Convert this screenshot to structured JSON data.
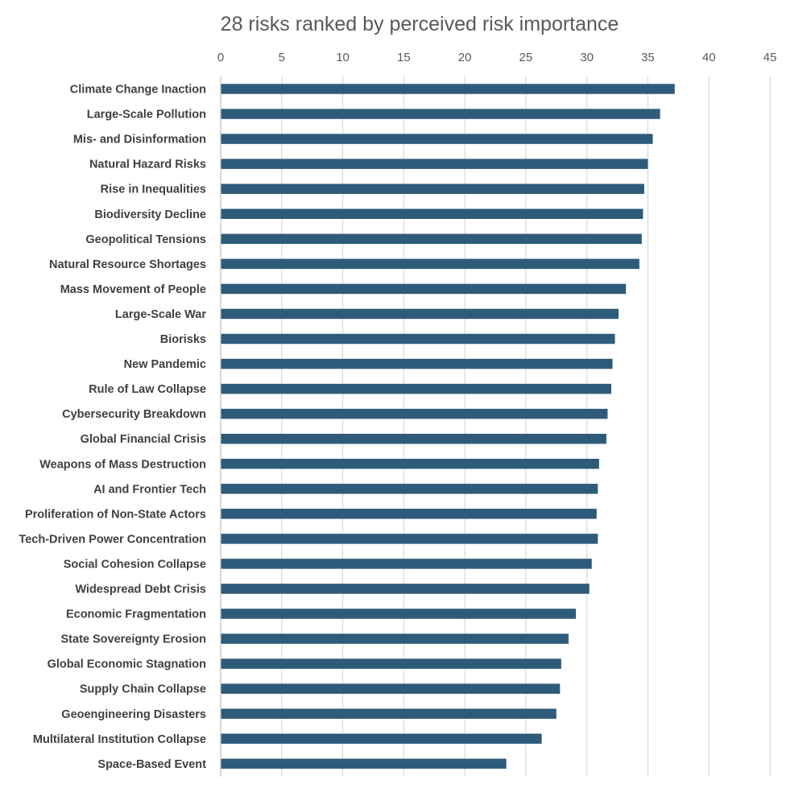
{
  "chart_data": {
    "type": "bar",
    "orientation": "horizontal",
    "title": "28 risks ranked by perceived risk importance",
    "xlabel": "",
    "ylabel": "",
    "xlim": [
      0,
      45
    ],
    "x_ticks": [
      "0",
      "5",
      "10",
      "15",
      "20",
      "25",
      "30",
      "35",
      "40",
      "45"
    ],
    "x_axis_position": "top",
    "grid": true,
    "bar_color": "#2e5b7a",
    "categories": [
      "Climate Change Inaction",
      "Large-Scale Pollution",
      "Mis- and Disinformation",
      "Natural Hazard Risks",
      "Rise in Inequalities",
      "Biodiversity Decline",
      "Geopolitical Tensions",
      "Natural Resource Shortages",
      "Mass Movement of People",
      "Large-Scale War",
      "Biorisks",
      "New Pandemic",
      "Rule of Law Collapse",
      "Cybersecurity Breakdown",
      "Global Financial Crisis",
      "Weapons of Mass Destruction",
      "AI and Frontier Tech",
      "Proliferation of Non-State Actors",
      "Tech-Driven Power Concentration",
      "Social Cohesion Collapse",
      "Widespread Debt Crisis",
      "Economic Fragmentation",
      "State Sovereignty Erosion",
      "Global Economic Stagnation",
      "Supply Chain Collapse",
      "Geoengineering Disasters",
      "Multilateral Institution Collapse",
      "Space-Based Event"
    ],
    "values": [
      37.2,
      36.0,
      35.4,
      35.0,
      34.7,
      34.6,
      34.5,
      34.3,
      33.2,
      32.6,
      32.3,
      32.1,
      32.0,
      31.7,
      31.6,
      31.0,
      30.9,
      30.8,
      30.9,
      30.4,
      30.2,
      29.1,
      28.5,
      27.9,
      27.8,
      27.5,
      26.3,
      23.4
    ]
  }
}
